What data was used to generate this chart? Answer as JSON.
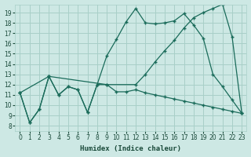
{
  "xlabel": "Humidex (Indice chaleur)",
  "bg_color": "#cde8e4",
  "grid_color": "#a8cfc8",
  "line_color": "#1a6b5a",
  "xlim": [
    -0.5,
    23.5
  ],
  "ylim": [
    7.5,
    19.8
  ],
  "xticks": [
    0,
    1,
    2,
    3,
    4,
    5,
    6,
    7,
    8,
    9,
    10,
    11,
    12,
    13,
    14,
    15,
    16,
    17,
    18,
    19,
    20,
    21,
    22,
    23
  ],
  "yticks": [
    8,
    9,
    10,
    11,
    12,
    13,
    14,
    15,
    16,
    17,
    18,
    19
  ],
  "line1_x": [
    0,
    1,
    2,
    3,
    4,
    5,
    6,
    7,
    8,
    9,
    10,
    11,
    12,
    13,
    14,
    15,
    16,
    17,
    18,
    19,
    20,
    21,
    22,
    23
  ],
  "line1_y": [
    11.2,
    8.3,
    9.6,
    12.8,
    11.0,
    11.8,
    11.5,
    9.3,
    12.0,
    12.0,
    11.3,
    11.3,
    11.5,
    11.2,
    11.0,
    10.8,
    10.6,
    10.4,
    10.2,
    10.0,
    9.8,
    9.6,
    9.4,
    9.2
  ],
  "line2_x": [
    0,
    1,
    2,
    3,
    4,
    5,
    6,
    7,
    8,
    9,
    10,
    11,
    12,
    13,
    14,
    15,
    16,
    17,
    18,
    19,
    20,
    21,
    22,
    23
  ],
  "line2_y": [
    11.2,
    8.3,
    9.6,
    12.8,
    11.0,
    11.8,
    11.5,
    9.3,
    12.0,
    14.8,
    16.4,
    18.1,
    19.4,
    18.0,
    17.9,
    18.0,
    18.2,
    18.9,
    17.8,
    16.5,
    13.0,
    11.8,
    10.5,
    9.2
  ],
  "line3_x": [
    0,
    3,
    9,
    12,
    13,
    14,
    15,
    16,
    17,
    18,
    19,
    20,
    21,
    22,
    23
  ],
  "line3_y": [
    11.2,
    12.8,
    12.0,
    12.0,
    13.0,
    14.2,
    15.3,
    16.3,
    17.5,
    18.5,
    19.0,
    19.4,
    19.8,
    16.6,
    9.2
  ]
}
